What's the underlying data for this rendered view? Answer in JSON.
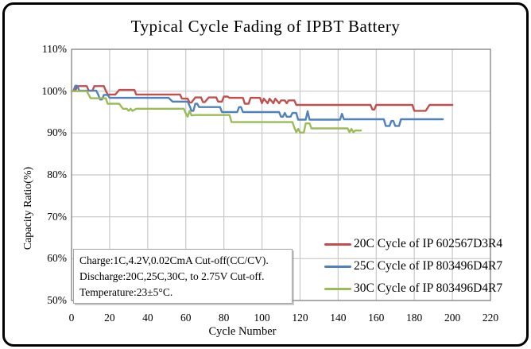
{
  "chart_data": {
    "type": "line",
    "title": "Typical Cycle Fading of IPBT Battery",
    "xlabel": "Cycle Number",
    "ylabel": "Capacity Ratio(%)",
    "xlim": [
      0,
      220
    ],
    "ylim": [
      50,
      110
    ],
    "x_ticks": [
      0,
      20,
      40,
      60,
      80,
      100,
      120,
      140,
      160,
      180,
      200,
      220
    ],
    "y_ticks": [
      50,
      60,
      70,
      80,
      90,
      100,
      110
    ],
    "y_tick_labels": [
      "50%",
      "60%",
      "70%",
      "80%",
      "90%",
      "100%",
      "110%"
    ],
    "grid": true,
    "legend_position": "inside-lower-right",
    "colors": {
      "series1": "#c0504d",
      "series2": "#4f81bd",
      "series3": "#9bbb59",
      "gridline": "#c8c8c8",
      "plot_border": "#808080",
      "frame": "#000000"
    },
    "series": [
      {
        "name": "20C Cycle of IP 602567D3R4",
        "color": "#c0504d",
        "points": [
          [
            0,
            100
          ],
          [
            2,
            100.1
          ],
          [
            3,
            101.2
          ],
          [
            8,
            101.2
          ],
          [
            9,
            100.1
          ],
          [
            11,
            100.1
          ],
          [
            12,
            101.2
          ],
          [
            17,
            101.2
          ],
          [
            18,
            100.1
          ],
          [
            19,
            99.2
          ],
          [
            23,
            99.2
          ],
          [
            25,
            100.3
          ],
          [
            33,
            100.3
          ],
          [
            34,
            99.2
          ],
          [
            57,
            99.2
          ],
          [
            58,
            98.2
          ],
          [
            61,
            98.2
          ],
          [
            62,
            97.3
          ],
          [
            63,
            97.3
          ],
          [
            65,
            98.5
          ],
          [
            68,
            98.5
          ],
          [
            69,
            97.4
          ],
          [
            70,
            97.4
          ],
          [
            72,
            98.5
          ],
          [
            76,
            98.5
          ],
          [
            77,
            97.5
          ],
          [
            79,
            97.5
          ],
          [
            80,
            98.7
          ],
          [
            82,
            98.7
          ],
          [
            83,
            98.4
          ],
          [
            90,
            98.4
          ],
          [
            91,
            97.0
          ],
          [
            93,
            97.0
          ],
          [
            94,
            98.4
          ],
          [
            99,
            98.4
          ],
          [
            100,
            97.1
          ],
          [
            101,
            98.2
          ],
          [
            103,
            97.1
          ],
          [
            104,
            98.2
          ],
          [
            106,
            97.1
          ],
          [
            107,
            98.2
          ],
          [
            109,
            97.1
          ],
          [
            110,
            97.8
          ],
          [
            112,
            97.8
          ],
          [
            113,
            97.1
          ],
          [
            114,
            97.8
          ],
          [
            117,
            97.8
          ],
          [
            118,
            96.7
          ],
          [
            157,
            96.7
          ],
          [
            158,
            95.6
          ],
          [
            159,
            95.6
          ],
          [
            160,
            96.7
          ],
          [
            179,
            96.7
          ],
          [
            180,
            95.3
          ],
          [
            186,
            95.3
          ],
          [
            188,
            96.7
          ],
          [
            200,
            96.7
          ]
        ]
      },
      {
        "name": "25C Cycle of IP 803496D4R7",
        "color": "#4f81bd",
        "points": [
          [
            0,
            100
          ],
          [
            1,
            100.1
          ],
          [
            2,
            101.3
          ],
          [
            3,
            101.3
          ],
          [
            4,
            100.1
          ],
          [
            13,
            100.1
          ],
          [
            14,
            99.2
          ],
          [
            15,
            98.0
          ],
          [
            16,
            98.0
          ],
          [
            17,
            99.1
          ],
          [
            19,
            99.1
          ],
          [
            20,
            98.4
          ],
          [
            51,
            98.4
          ],
          [
            53,
            97.5
          ],
          [
            61,
            97.5
          ],
          [
            62,
            96.5
          ],
          [
            63,
            95.3
          ],
          [
            64,
            95.3
          ],
          [
            65,
            97.0
          ],
          [
            66,
            97.0
          ],
          [
            67,
            96.2
          ],
          [
            78,
            96.2
          ],
          [
            79,
            95.0
          ],
          [
            87,
            95.0
          ],
          [
            88,
            96.2
          ],
          [
            89,
            96.2
          ],
          [
            90,
            95.0
          ],
          [
            109,
            95.0
          ],
          [
            110,
            93.9
          ],
          [
            111,
            93.9
          ],
          [
            112,
            94.8
          ],
          [
            113,
            93.9
          ],
          [
            115,
            93.9
          ],
          [
            116,
            94.8
          ],
          [
            118,
            94.8
          ],
          [
            119,
            93.2
          ],
          [
            123,
            93.2
          ],
          [
            124,
            95.2
          ],
          [
            125,
            93.2
          ],
          [
            141,
            93.2
          ],
          [
            142,
            94.6
          ],
          [
            143,
            93.3
          ],
          [
            164,
            93.3
          ],
          [
            165,
            91.7
          ],
          [
            167,
            91.7
          ],
          [
            168,
            92.9
          ],
          [
            169,
            92.9
          ],
          [
            170,
            91.7
          ],
          [
            172,
            91.7
          ],
          [
            173,
            93.3
          ],
          [
            195,
            93.3
          ]
        ]
      },
      {
        "name": "30C Cycle of IP 803496D4R7",
        "color": "#9bbb59",
        "points": [
          [
            0,
            100
          ],
          [
            8,
            100
          ],
          [
            10,
            98.3
          ],
          [
            18,
            98.3
          ],
          [
            19,
            97.0
          ],
          [
            25,
            97.0
          ],
          [
            27,
            95.8
          ],
          [
            29,
            95.8
          ],
          [
            30,
            95.3
          ],
          [
            31,
            95.8
          ],
          [
            32,
            95.3
          ],
          [
            34,
            95.8
          ],
          [
            59,
            95.8
          ],
          [
            60,
            94.7
          ],
          [
            61,
            93.9
          ],
          [
            62,
            95.3
          ],
          [
            63,
            94.2
          ],
          [
            65,
            94.3
          ],
          [
            83,
            94.3
          ],
          [
            84,
            92.6
          ],
          [
            116,
            92.6
          ],
          [
            117,
            91.3
          ],
          [
            118,
            90.2
          ],
          [
            119,
            91.0
          ],
          [
            120,
            90.1
          ],
          [
            122,
            90.1
          ],
          [
            123,
            92.3
          ],
          [
            125,
            92.3
          ],
          [
            126,
            91.1
          ],
          [
            145,
            91.1
          ],
          [
            146,
            90.2
          ],
          [
            147,
            91.0
          ],
          [
            148,
            90.2
          ],
          [
            149,
            90.6
          ],
          [
            152,
            90.6
          ]
        ]
      }
    ],
    "annotation": {
      "lines": [
        "Charge:1C,4.2V,0.02CmA Cut-off(CC/CV).",
        "Discharge:20C,25C,30C, to 2.75V Cut-off.",
        "Temperature:23±5°C."
      ]
    }
  }
}
